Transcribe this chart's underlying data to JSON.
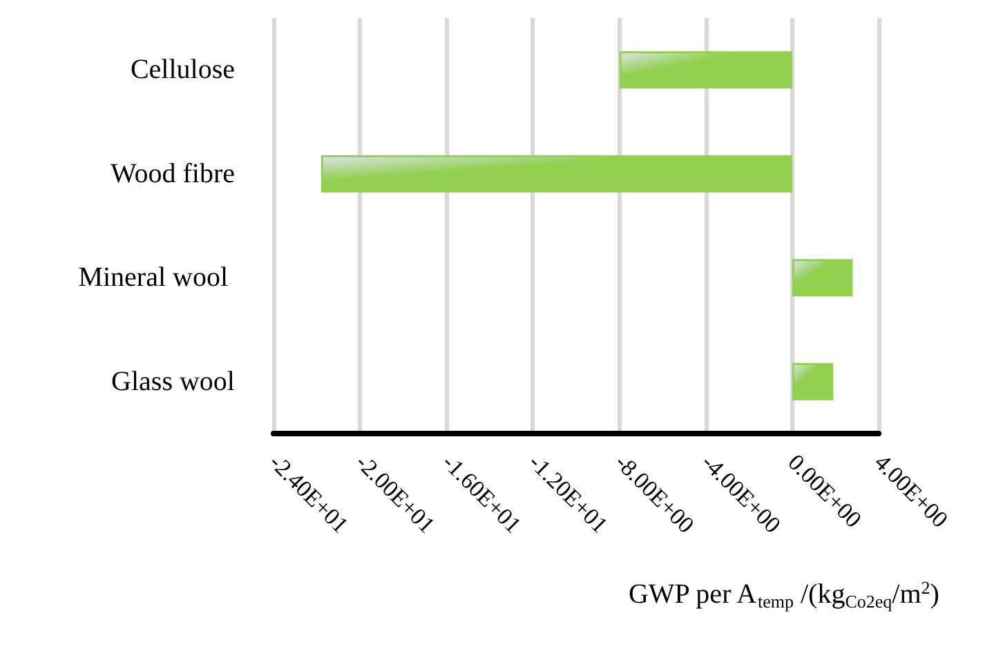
{
  "chart_data": {
    "type": "bar",
    "orientation": "horizontal",
    "categories": [
      "Cellulose",
      "Wood fibre",
      "Mineral wool ",
      "Glass wool"
    ],
    "values": [
      -8.0,
      -21.8,
      2.8,
      1.9
    ],
    "color": "#92d050",
    "xlabel": "GWP per A$_{temp}$ /(kg$_{Co2eq}$/m$^{2}$)",
    "xlim": [
      -24,
      4
    ],
    "xticks": [
      {
        "value": -24,
        "label": "-2.40E+01"
      },
      {
        "value": -20,
        "label": "-2.00E+01"
      },
      {
        "value": -16,
        "label": "-1.60E+01"
      },
      {
        "value": -12,
        "label": "-1.20E+01"
      },
      {
        "value": -8,
        "label": "-8.00E+00"
      },
      {
        "value": -4,
        "label": "-4.00E+00"
      },
      {
        "value": 0,
        "label": "0.00E+00"
      },
      {
        "value": 4,
        "label": "4.00E+00"
      }
    ],
    "grid": "x"
  }
}
